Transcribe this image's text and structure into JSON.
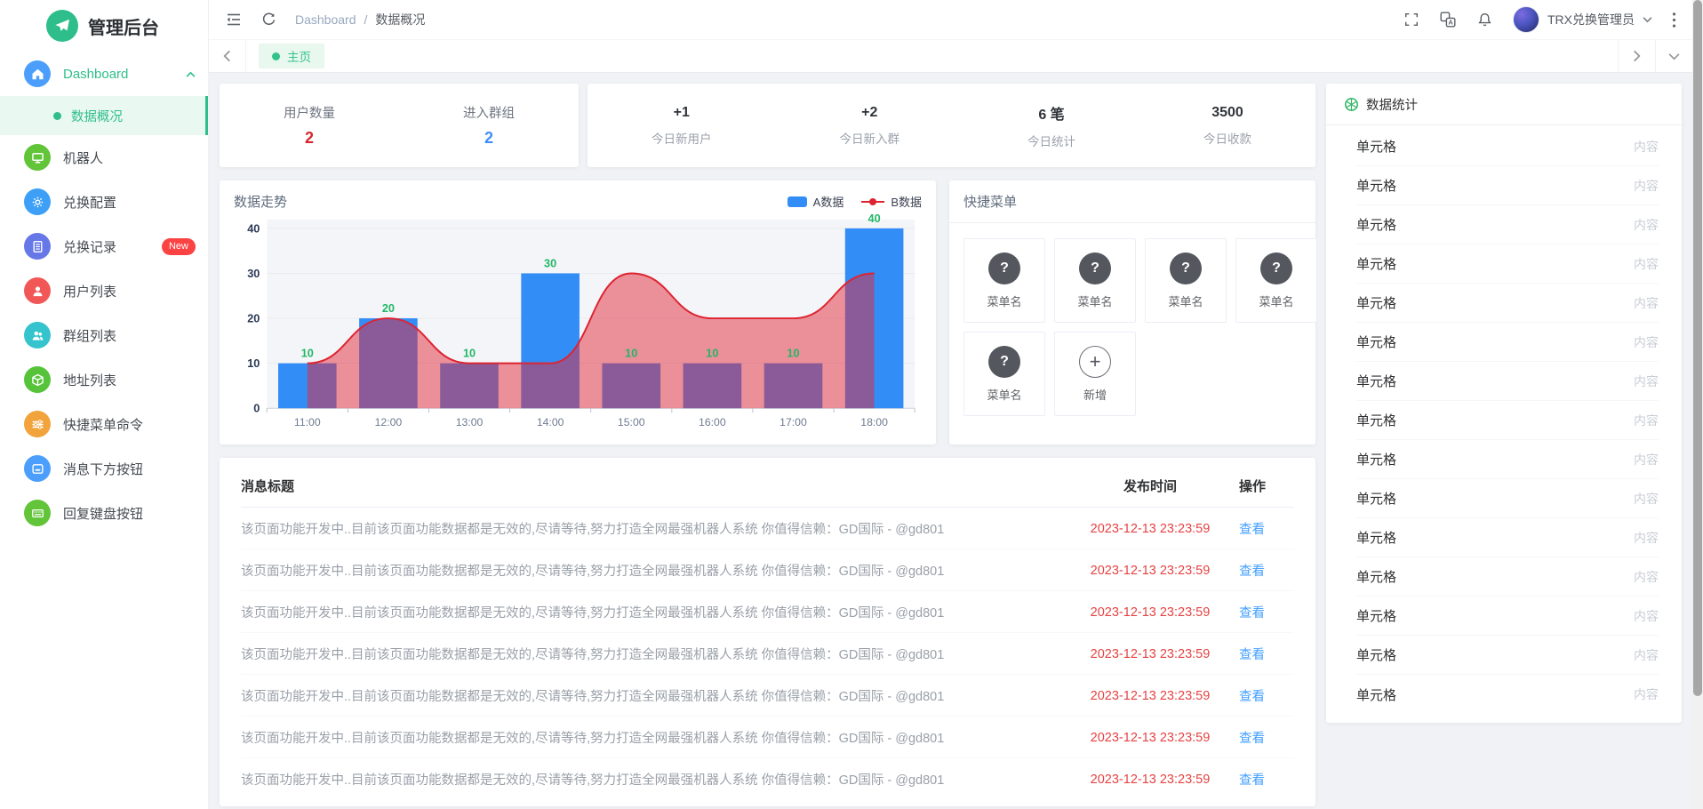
{
  "app": {
    "title": "管理后台",
    "logo_icon": "paper-plane-icon",
    "accent_color": "#2fbe8a"
  },
  "sidebar": {
    "items": [
      {
        "label": "Dashboard",
        "icon": "home-icon",
        "color": "#4b9efb",
        "children": [
          {
            "label": "数据概况",
            "active": true
          }
        ]
      },
      {
        "label": "机器人",
        "icon": "monitor-icon",
        "color": "#62c438"
      },
      {
        "label": "兑换配置",
        "icon": "gear-icon",
        "color": "#3d9ff6"
      },
      {
        "label": "兑换记录",
        "icon": "document-icon",
        "color": "#6677e8",
        "badge": "New"
      },
      {
        "label": "用户列表",
        "icon": "user-icon",
        "color": "#f25757"
      },
      {
        "label": "群组列表",
        "icon": "group-icon",
        "color": "#35c3cd"
      },
      {
        "label": "地址列表",
        "icon": "cube-icon",
        "color": "#57c33b"
      },
      {
        "label": "快捷菜单命令",
        "icon": "sliders-icon",
        "color": "#f2a33c"
      },
      {
        "label": "消息下方按钮",
        "icon": "inline-button-icon",
        "color": "#4b9efb"
      },
      {
        "label": "回复键盘按钮",
        "icon": "keyboard-icon",
        "color": "#62c438"
      }
    ]
  },
  "header": {
    "breadcrumb": {
      "root": "Dashboard",
      "separator": "/",
      "current": "数据概况"
    },
    "icons": [
      "menu-fold-icon",
      "refresh-icon",
      "fullscreen-icon",
      "translate-icon",
      "bell-icon",
      "kebab-icon"
    ],
    "user": {
      "name": "TRX兑换管理员"
    }
  },
  "tabbar": {
    "active_tab": "主页"
  },
  "stats": {
    "users": {
      "label": "用户数量",
      "value": "2",
      "value_color": "#d4262e"
    },
    "groups": {
      "label": "进入群组",
      "value": "2",
      "value_color": "#3e8ef7"
    },
    "today": [
      {
        "value": "+1",
        "label": "今日新用户"
      },
      {
        "value": "+2",
        "label": "今日新入群"
      },
      {
        "value": "6 笔",
        "label": "今日统计"
      },
      {
        "value": "3500",
        "label": "今日收款"
      }
    ]
  },
  "chart_data": {
    "type": "bar",
    "title": "数据走势",
    "categories": [
      "11:00",
      "12:00",
      "13:00",
      "14:00",
      "15:00",
      "16:00",
      "17:00",
      "18:00"
    ],
    "series": [
      {
        "name": "A数据",
        "type": "bar",
        "color": "#338df7",
        "values": [
          10,
          20,
          10,
          30,
          10,
          10,
          10,
          40
        ]
      },
      {
        "name": "B数据",
        "type": "line",
        "color": "#dc2430",
        "fill": "rgba(225,42,58,0.5)",
        "values": [
          10,
          20,
          10,
          10,
          30,
          20,
          20,
          30
        ]
      }
    ],
    "ylim": [
      0,
      40
    ],
    "yticks": [
      0,
      10,
      20,
      30,
      40
    ],
    "label_color": "#21b767",
    "grid": true,
    "legend_position": "top-right",
    "plot_bg": "#f4f5f8"
  },
  "quick_menu": {
    "title": "快捷菜单",
    "items": [
      "菜单名",
      "菜单名",
      "菜单名",
      "菜单名",
      "菜单名"
    ],
    "add_label": "新增"
  },
  "messages": {
    "columns": [
      "消息标题",
      "发布时间",
      "操作"
    ],
    "rows": [
      {
        "text": "该页面功能开发中..目前该页面功能数据都是无效的,尽请等待,努力打造全网最强机器人系统 你值得信赖：GD国际 - @gd801",
        "time": "2023-12-13 23:23:59",
        "action": "查看"
      },
      {
        "text": "该页面功能开发中..目前该页面功能数据都是无效的,尽请等待,努力打造全网最强机器人系统 你值得信赖：GD国际 - @gd801",
        "time": "2023-12-13 23:23:59",
        "action": "查看"
      },
      {
        "text": "该页面功能开发中..目前该页面功能数据都是无效的,尽请等待,努力打造全网最强机器人系统 你值得信赖：GD国际 - @gd801",
        "time": "2023-12-13 23:23:59",
        "action": "查看"
      },
      {
        "text": "该页面功能开发中..目前该页面功能数据都是无效的,尽请等待,努力打造全网最强机器人系统 你值得信赖：GD国际 - @gd801",
        "time": "2023-12-13 23:23:59",
        "action": "查看"
      },
      {
        "text": "该页面功能开发中..目前该页面功能数据都是无效的,尽请等待,努力打造全网最强机器人系统 你值得信赖：GD国际 - @gd801",
        "time": "2023-12-13 23:23:59",
        "action": "查看"
      },
      {
        "text": "该页面功能开发中..目前该页面功能数据都是无效的,尽请等待,努力打造全网最强机器人系统 你值得信赖：GD国际 - @gd801",
        "time": "2023-12-13 23:23:59",
        "action": "查看"
      },
      {
        "text": "该页面功能开发中..目前该页面功能数据都是无效的,尽请等待,努力打造全网最强机器人系统 你值得信赖：GD国际 - @gd801",
        "time": "2023-12-13 23:23:59",
        "action": "查看"
      }
    ]
  },
  "stats_panel": {
    "title": "数据统计",
    "icon": "pinwheel-icon",
    "rows": [
      {
        "label": "单元格",
        "value": "内容"
      },
      {
        "label": "单元格",
        "value": "内容"
      },
      {
        "label": "单元格",
        "value": "内容"
      },
      {
        "label": "单元格",
        "value": "内容"
      },
      {
        "label": "单元格",
        "value": "内容"
      },
      {
        "label": "单元格",
        "value": "内容"
      },
      {
        "label": "单元格",
        "value": "内容"
      },
      {
        "label": "单元格",
        "value": "内容"
      },
      {
        "label": "单元格",
        "value": "内容"
      },
      {
        "label": "单元格",
        "value": "内容"
      },
      {
        "label": "单元格",
        "value": "内容"
      },
      {
        "label": "单元格",
        "value": "内容"
      },
      {
        "label": "单元格",
        "value": "内容"
      },
      {
        "label": "单元格",
        "value": "内容"
      },
      {
        "label": "单元格",
        "value": "内容"
      }
    ]
  }
}
